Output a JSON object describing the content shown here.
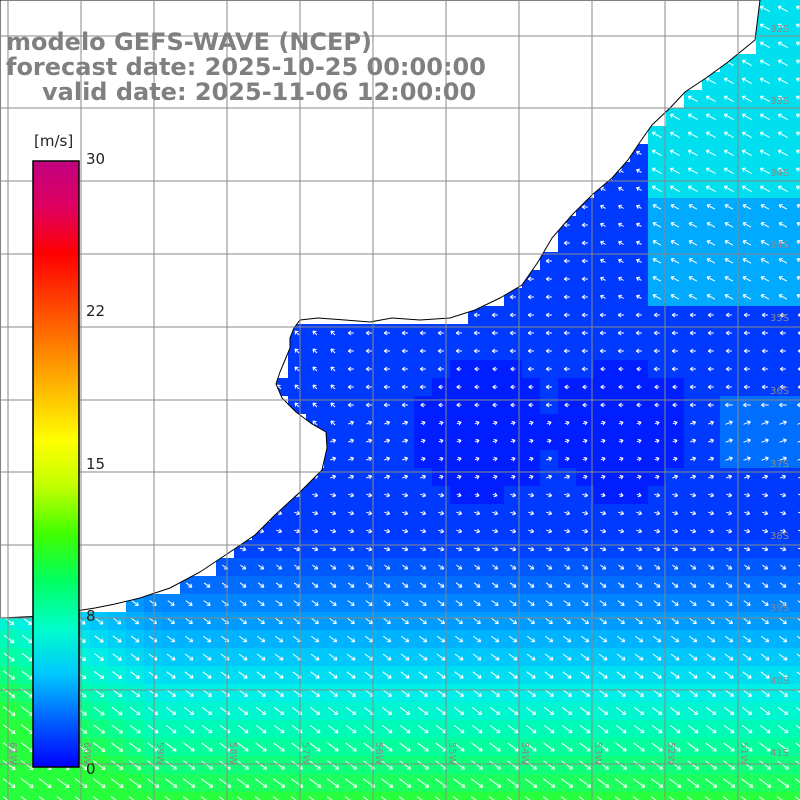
{
  "titles": {
    "model": "modelo GEFS-WAVE (NCEP)",
    "forecast": "forecast date: 2025-10-25 00:00:00",
    "valid": "valid date: 2025-11-06 12:00:00"
  },
  "colorbar": {
    "unit": "[m/s]",
    "ticks": [
      "30",
      "22",
      "15",
      "8",
      "0"
    ],
    "colors": [
      "#0000ff",
      "#0060ff",
      "#00c8ff",
      "#00ffc8",
      "#00ff60",
      "#40ff00",
      "#c0ff00",
      "#ffff00",
      "#ffc000",
      "#ff8000",
      "#ff4000",
      "#ff0000",
      "#e00060",
      "#c00080"
    ]
  },
  "map": {
    "lat_labels": [
      "32S",
      "33S",
      "34S",
      "35S",
      "36S",
      "37S",
      "38S",
      "39S",
      "40S",
      "41S"
    ],
    "lon_labels": [
      "61W",
      "60W",
      "59W",
      "58W",
      "57W",
      "56W",
      "55W",
      "54W",
      "53W",
      "52W",
      "51W"
    ],
    "land_color": "#ffffff",
    "grid_color": "#888888",
    "arrow_color": "#ffffff"
  }
}
